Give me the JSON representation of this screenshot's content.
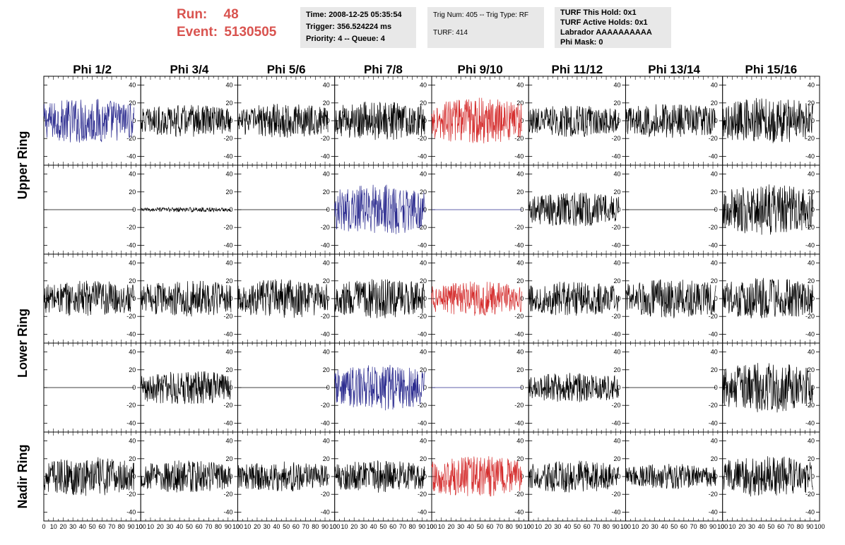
{
  "header": {
    "run_label": "Run:",
    "run_value": "48",
    "event_label": "Event:",
    "event_value": "5130505",
    "time_line": "Time: 2008-12-25 05:35:54",
    "trigger_line": "Trigger: 356.524224 ms",
    "priority_line": "Priority: 4 -- Queue: 4",
    "trig_num_line": "Trig Num: 405 -- Trig Type: RF",
    "turf_line": "TURF: 414",
    "turf_this_hold": "TURF This Hold: 0x1",
    "turf_active_holds": "TURF Active Holds: 0x1",
    "labrador": "Labrador AAAAAAAAAA",
    "phi_mask": "Phi Mask: 0"
  },
  "chart_data": {
    "type": "line",
    "columns": [
      "Phi 1/2",
      "Phi 3/4",
      "Phi 5/6",
      "Phi 7/8",
      "Phi 9/10",
      "Phi 11/12",
      "Phi 13/14",
      "Phi 15/16"
    ],
    "rings": [
      "Upper Ring",
      "Lower Ring",
      "Nadir Ring"
    ],
    "xlim": [
      0,
      100
    ],
    "ylim": [
      -50,
      50
    ],
    "x_ticks": [
      0,
      10,
      20,
      30,
      40,
      50,
      60,
      70,
      80,
      90,
      100
    ],
    "x_tick_labels": [
      "0",
      "10",
      "20",
      "30",
      "40",
      "50",
      "60",
      "70",
      "80",
      "90",
      "100"
    ],
    "y_ticks": [
      -40,
      -20,
      0,
      20,
      40
    ],
    "y_tick_labels": [
      "-40",
      "-20",
      "0",
      "20",
      "40"
    ],
    "rows": [
      {
        "ring": "Upper Ring",
        "panels": [
          {
            "color": "#2b2b8f",
            "amplitude": 20,
            "flat": false
          },
          {
            "color": "#000000",
            "amplitude": 14,
            "flat": false
          },
          {
            "color": "#000000",
            "amplitude": 15,
            "flat": false
          },
          {
            "color": "#000000",
            "amplitude": 17,
            "flat": false
          },
          {
            "color": "#d42a2a",
            "amplitude": 20,
            "flat": false
          },
          {
            "color": "#000000",
            "amplitude": 14,
            "flat": false
          },
          {
            "color": "#000000",
            "amplitude": 15,
            "flat": false
          },
          {
            "color": "#000000",
            "amplitude": 20,
            "flat": false
          }
        ]
      },
      {
        "ring": "Upper Ring",
        "panels": [
          {
            "color": "#000000",
            "amplitude": 0,
            "flat": true
          },
          {
            "color": "#000000",
            "amplitude": 2,
            "flat": false
          },
          {
            "color": "#000000",
            "amplitude": 0,
            "flat": true
          },
          {
            "color": "#2b2b8f",
            "amplitude": 22,
            "flat": false
          },
          {
            "color": "#2b2b8f",
            "amplitude": 0,
            "flat": true
          },
          {
            "color": "#000000",
            "amplitude": 15,
            "flat": false
          },
          {
            "color": "#000000",
            "amplitude": 0,
            "flat": true
          },
          {
            "color": "#000000",
            "amplitude": 22,
            "flat": false
          }
        ]
      },
      {
        "ring": "Lower Ring",
        "panels": [
          {
            "color": "#000000",
            "amplitude": 16,
            "flat": false
          },
          {
            "color": "#000000",
            "amplitude": 16,
            "flat": false
          },
          {
            "color": "#000000",
            "amplitude": 17,
            "flat": false
          },
          {
            "color": "#000000",
            "amplitude": 17,
            "flat": false
          },
          {
            "color": "#d42a2a",
            "amplitude": 15,
            "flat": false
          },
          {
            "color": "#000000",
            "amplitude": 15,
            "flat": false
          },
          {
            "color": "#000000",
            "amplitude": 17,
            "flat": false
          },
          {
            "color": "#000000",
            "amplitude": 18,
            "flat": false
          }
        ]
      },
      {
        "ring": "Lower Ring",
        "panels": [
          {
            "color": "#000000",
            "amplitude": 0,
            "flat": true
          },
          {
            "color": "#000000",
            "amplitude": 15,
            "flat": false
          },
          {
            "color": "#000000",
            "amplitude": 0,
            "flat": true
          },
          {
            "color": "#2b2b8f",
            "amplitude": 20,
            "flat": false
          },
          {
            "color": "#2b2b8f",
            "amplitude": 0,
            "flat": true
          },
          {
            "color": "#000000",
            "amplitude": 13,
            "flat": false
          },
          {
            "color": "#000000",
            "amplitude": 0,
            "flat": true
          },
          {
            "color": "#000000",
            "amplitude": 22,
            "flat": false
          }
        ]
      },
      {
        "ring": "Nadir Ring",
        "panels": [
          {
            "color": "#000000",
            "amplitude": 17,
            "flat": false
          },
          {
            "color": "#000000",
            "amplitude": 14,
            "flat": false
          },
          {
            "color": "#000000",
            "amplitude": 13,
            "flat": false
          },
          {
            "color": "#000000",
            "amplitude": 14,
            "flat": false
          },
          {
            "color": "#d42a2a",
            "amplitude": 18,
            "flat": false
          },
          {
            "color": "#000000",
            "amplitude": 14,
            "flat": false
          },
          {
            "color": "#000000",
            "amplitude": 11,
            "flat": false
          },
          {
            "color": "#000000",
            "amplitude": 18,
            "flat": false
          }
        ]
      }
    ],
    "ring_labels": [
      {
        "text": "Upper Ring",
        "rows": [
          0,
          1
        ]
      },
      {
        "text": "Lower Ring",
        "rows": [
          2,
          3
        ]
      },
      {
        "text": "Nadir Ring",
        "rows": [
          4,
          4
        ]
      }
    ]
  }
}
